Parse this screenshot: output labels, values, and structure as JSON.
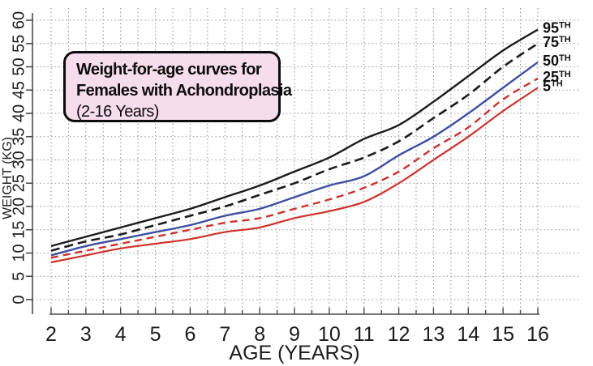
{
  "title_box": {
    "line1": "Weight-for-age curves for",
    "line2": "Females with Achondroplasia",
    "line3": "(2-16 Years)"
  },
  "chart_data": {
    "type": "line",
    "title": "Weight-for-age curves for Females with Achondroplasia (2-16 Years)",
    "xlabel": "AGE (YEARS)",
    "ylabel": "WEIGHT (KG)",
    "xlim": [
      2,
      16
    ],
    "ylim": [
      0,
      60
    ],
    "x_ticks": [
      2,
      3,
      4,
      5,
      6,
      7,
      8,
      9,
      10,
      11,
      12,
      13,
      14,
      15,
      16
    ],
    "y_ticks": [
      0,
      5,
      10,
      15,
      20,
      25,
      30,
      35,
      40,
      45,
      50,
      55,
      60
    ],
    "grid": {
      "style": "dotted",
      "x_minor_step": 0.5,
      "y_step": 5,
      "on": true
    },
    "legend_position": "right of curve ends",
    "x": [
      2,
      3,
      4,
      5,
      6,
      7,
      8,
      9,
      10,
      11,
      12,
      13,
      14,
      15,
      16
    ],
    "series": [
      {
        "name": "95th percentile",
        "label": "95",
        "label_sup": "TH",
        "color": "#1b1b1b",
        "style": "solid",
        "dash": "",
        "width": 2.4,
        "values": [
          11.5,
          13.5,
          15.5,
          17.5,
          19.5,
          22,
          24.5,
          27.5,
          30.5,
          34.5,
          37.5,
          42.5,
          48,
          53.5,
          58
        ]
      },
      {
        "name": "75th percentile",
        "label": "75",
        "label_sup": "TH",
        "color": "#1b1b1b",
        "style": "dashed",
        "dash": "11 6",
        "width": 2.6,
        "values": [
          10.5,
          12.5,
          14,
          16,
          18,
          20,
          22.5,
          25,
          28,
          30.5,
          34,
          39,
          44,
          50,
          55
        ]
      },
      {
        "name": "50th percentile",
        "label": "50",
        "label_sup": "TH",
        "color": "#3d4fa1",
        "style": "solid",
        "dash": "",
        "width": 2.4,
        "values": [
          9.5,
          11.5,
          13,
          14.5,
          16,
          18,
          19.5,
          22,
          24.5,
          26.5,
          31,
          35,
          40,
          45.5,
          51
        ]
      },
      {
        "name": "25th percentile",
        "label": "25",
        "label_sup": "TH",
        "color": "#cd322a",
        "style": "dashed",
        "dash": "9 6",
        "width": 2.4,
        "values": [
          9,
          10.5,
          12,
          13.5,
          15,
          16.5,
          17.5,
          19.5,
          21.5,
          24,
          27.5,
          32.5,
          37,
          43,
          47.5
        ]
      },
      {
        "name": "5th percentile",
        "label": "5",
        "label_sup": "TH",
        "color": "#cd322a",
        "style": "solid",
        "dash": "",
        "width": 2.2,
        "values": [
          8,
          9.5,
          11,
          12,
          13,
          14.5,
          15.5,
          17.5,
          19,
          21,
          25,
          30,
          35,
          40.5,
          45.5
        ]
      }
    ]
  },
  "colors": {
    "title_box_bg": "#f6ddeb",
    "title_box_border": "#0d0d0d",
    "grid": "#9b9b9b",
    "axis": "#4a4a4a",
    "tick_label": "#1c1c1c",
    "black_curve": "#1b1b1b",
    "blue_curve": "#3d4fa1",
    "red_curve": "#cd322a"
  }
}
